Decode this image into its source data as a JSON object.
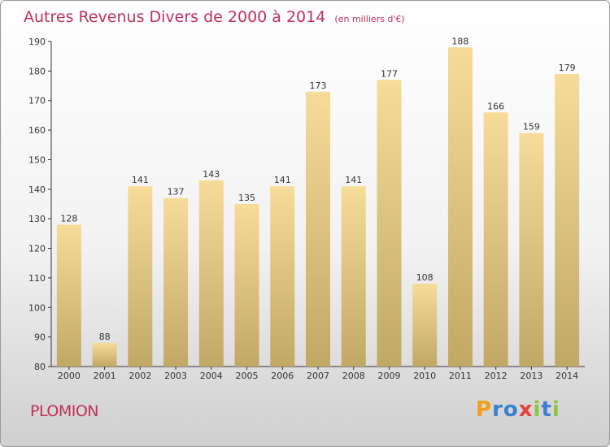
{
  "chart_data": {
    "type": "bar",
    "title": "Autres Revenus Divers de 2000 à 2014",
    "subtitle": "(en milliers d'€)",
    "categories": [
      "2000",
      "2001",
      "2002",
      "2003",
      "2004",
      "2005",
      "2006",
      "2007",
      "2008",
      "2009",
      "2010",
      "2011",
      "2012",
      "2013",
      "2014"
    ],
    "values": [
      128,
      88,
      141,
      137,
      143,
      135,
      141,
      173,
      141,
      177,
      108,
      188,
      166,
      159,
      179
    ],
    "ylim": [
      80,
      190
    ],
    "yticks": [
      80,
      90,
      100,
      110,
      120,
      130,
      140,
      150,
      160,
      170,
      180,
      190
    ],
    "grid": false,
    "colors": {
      "bar_top": "#f6dc98",
      "bar_bottom": "#c2a865",
      "title": "#c0305a"
    }
  },
  "footer": {
    "town": "PLOMION",
    "logo": {
      "letters": [
        "P",
        "r",
        "o",
        "x",
        "i",
        "t",
        "i"
      ],
      "colors": [
        "#f39c1e",
        "#3b7fd0",
        "#3b7fd0",
        "#e8413c",
        "#8cc63f",
        "#3b7fd0",
        "#8cc63f"
      ]
    }
  }
}
